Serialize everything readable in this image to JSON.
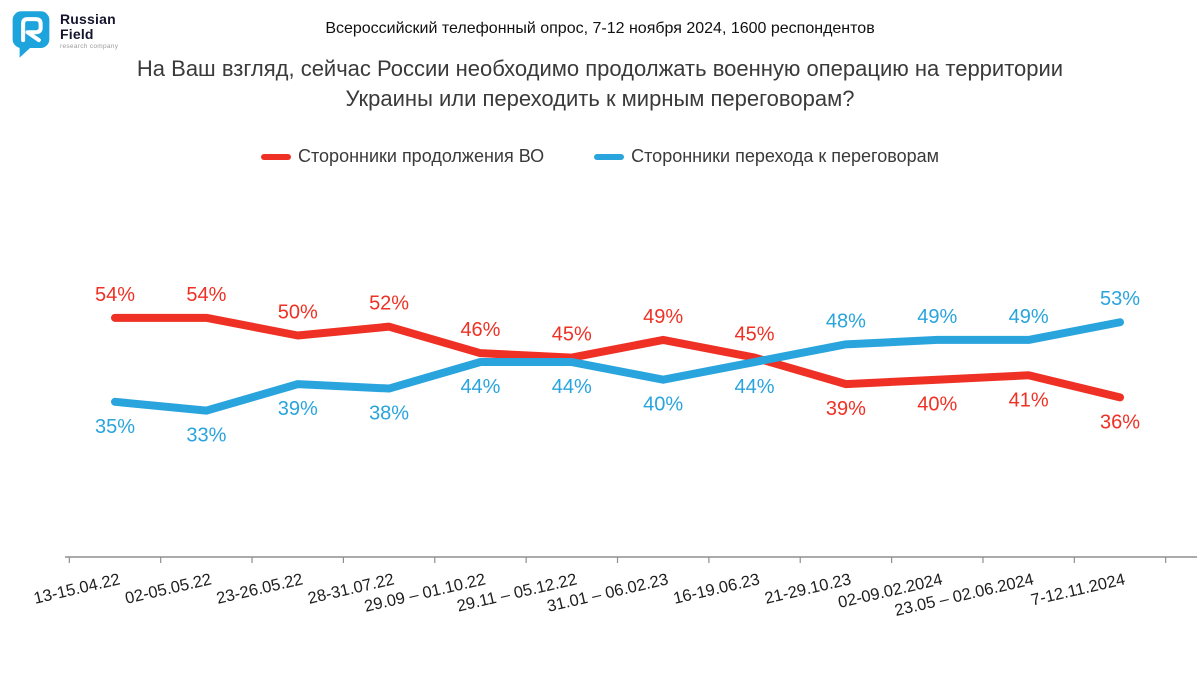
{
  "logo": {
    "brand_line1": "Russian",
    "brand_line2": "Field",
    "tagline": "research company",
    "color": "#1ea4dc"
  },
  "header": {
    "text": "Всероссийский телефонный опрос, 7-12 ноября 2024, 1600 респондентов"
  },
  "title": {
    "text": "На Ваш взгляд, сейчас России необходимо продолжать военную операцию на территории Украины или переходить к мирным переговорам?"
  },
  "legend": [
    {
      "label": "Сторонники продолжения ВО",
      "color": "#ee3124"
    },
    {
      "label": "Сторонники перехода к переговорам",
      "color": "#29a4dd"
    }
  ],
  "chart_data": {
    "type": "line",
    "title": "На Ваш взгляд, сейчас России необходимо продолжать военную операцию на территории Украины или переходить к мирным переговорам?",
    "categories": [
      "13-15.04.22",
      "02-05.05.22",
      "23-26.05.22",
      "28-31.07.22",
      "29.09 – 01.10.22",
      "29.11 – 05.12.22",
      "31.01 – 06.02.23",
      "16-19.06.23",
      "21-29.10.23",
      "02-09.02.2024",
      "23.05 – 02.06.2024",
      "7-12.11.2024"
    ],
    "series": [
      {
        "name": "Сторонники продолжения ВО",
        "color": "#ee3124",
        "values": [
          54,
          54,
          50,
          52,
          46,
          45,
          49,
          45,
          39,
          40,
          41,
          36
        ]
      },
      {
        "name": "Сторонники перехода к переговорам",
        "color": "#29a4dd",
        "values": [
          35,
          33,
          39,
          38,
          44,
          44,
          40,
          44,
          48,
          49,
          49,
          53
        ]
      }
    ],
    "value_suffix": "%",
    "ylim": [
      0,
      100
    ],
    "grid": false,
    "legend_position": "top",
    "axis_color": "#8f8f8f",
    "tick_label_rotation_deg": -13
  }
}
